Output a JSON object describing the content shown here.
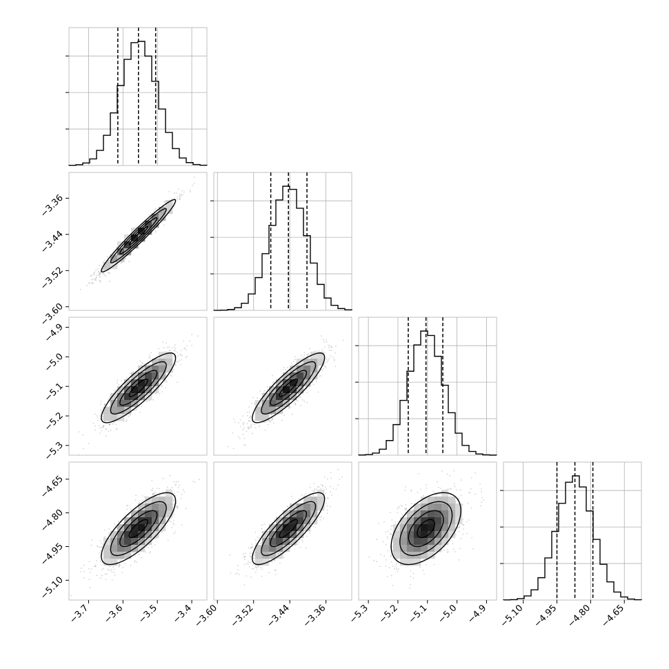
{
  "chart_data": {
    "type": "corner",
    "params": [
      {
        "ticks": [
          -3.7,
          -3.6,
          -3.5,
          -3.4
        ],
        "tick_labels": [
          "−3.7",
          "−3.6",
          "−3.5",
          "−3.4"
        ],
        "range": [
          -3.757,
          -3.356
        ],
        "quantiles": [
          -3.615,
          -3.555,
          -3.505
        ],
        "median": -3.555,
        "sigma": 0.054
      },
      {
        "ticks": [
          -3.6,
          -3.52,
          -3.44,
          -3.36
        ],
        "tick_labels": [
          "−3.60",
          "−3.52",
          "−3.44",
          "−3.36"
        ],
        "range": [
          -3.608,
          -3.303
        ],
        "quantiles": [
          -3.482,
          -3.443,
          -3.402
        ],
        "median": -3.443,
        "sigma": 0.04
      },
      {
        "ticks": [
          -5.3,
          -5.2,
          -5.1,
          -5.0,
          -4.9
        ],
        "tick_labels": [
          "−5.3",
          "−5.2",
          "−5.1",
          "−5.0",
          "−4.9"
        ],
        "range": [
          -5.333,
          -4.866
        ],
        "quantiles": [
          -5.165,
          -5.105,
          -5.048
        ],
        "median": -5.105,
        "sigma": 0.059
      },
      {
        "ticks": [
          -5.1,
          -4.95,
          -4.8,
          -4.65
        ],
        "tick_labels": [
          "−5.10",
          "−4.95",
          "−4.80",
          "−4.65"
        ],
        "range": [
          -5.188,
          -4.574
        ],
        "quantiles": [
          -4.95,
          -4.87,
          -4.79
        ],
        "median": -4.87,
        "sigma": 0.08
      }
    ],
    "correlations": [
      [
        0,
        1,
        0.97
      ],
      [
        0,
        2,
        0.86
      ],
      [
        1,
        2,
        0.87
      ],
      [
        0,
        3,
        0.77
      ],
      [
        1,
        3,
        0.83
      ],
      [
        2,
        3,
        0.5
      ]
    ],
    "hist_bins": 20,
    "contour_levels_sigma": [
      0.5,
      1.0,
      1.5,
      2.0
    ],
    "quantile_line_style": "dashed",
    "grid": true,
    "colors": {
      "line": "#000000",
      "grid": "#b0b0b0",
      "frame": "#bfbfbf",
      "points": "#808080"
    }
  }
}
